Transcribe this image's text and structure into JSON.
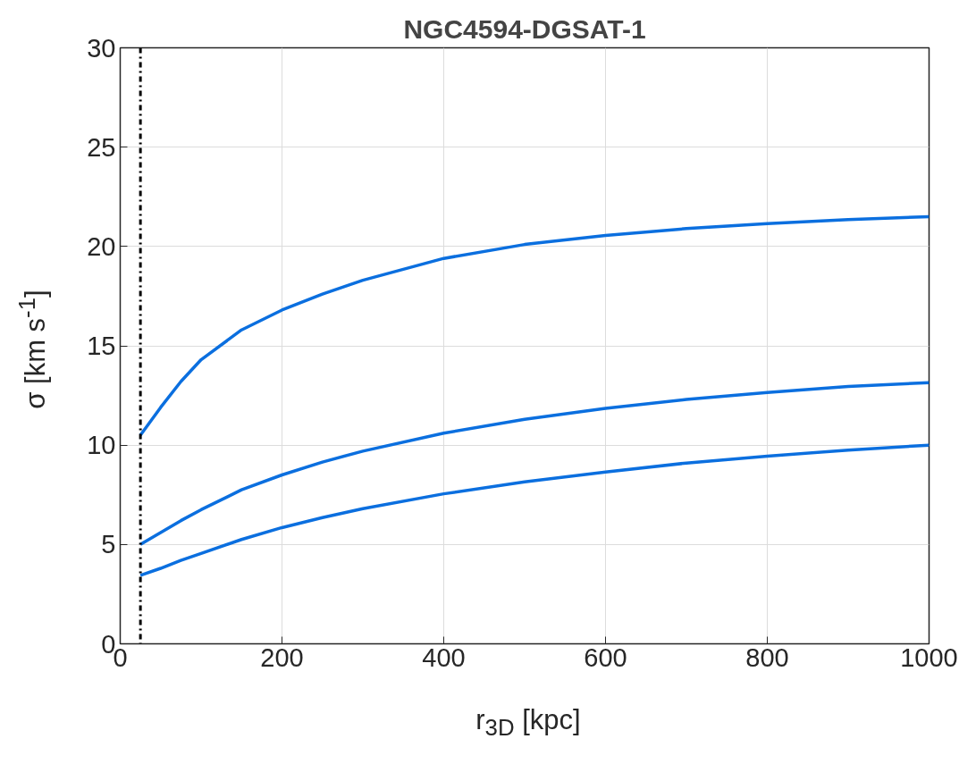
{
  "chart_data": {
    "type": "line",
    "title": "NGC4594-DGSAT-1",
    "xlabel": "r$_{3D}$ [kpc]",
    "ylabel": "σ [km s$^{-1}$]",
    "x": [
      25,
      50,
      75,
      100,
      150,
      200,
      250,
      300,
      400,
      500,
      600,
      700,
      800,
      900,
      1000
    ],
    "series": [
      {
        "color": "#0b6fdf",
        "values": [
          10.5,
          11.9,
          13.2,
          14.3,
          15.8,
          16.8,
          17.6,
          18.3,
          19.4,
          20.1,
          20.55,
          20.9,
          21.15,
          21.35,
          21.5
        ]
      },
      {
        "color": "#0b6fdf",
        "values": [
          5.0,
          5.6,
          6.2,
          6.75,
          7.75,
          8.5,
          9.15,
          9.7,
          10.6,
          11.3,
          11.85,
          12.3,
          12.65,
          12.95,
          13.15
        ]
      },
      {
        "color": "#0b6fdf",
        "values": [
          3.45,
          3.8,
          4.2,
          4.55,
          5.25,
          5.85,
          6.35,
          6.8,
          7.55,
          8.15,
          8.65,
          9.1,
          9.45,
          9.75,
          10.0
        ]
      }
    ],
    "xlim": [
      0,
      1000
    ],
    "ylim": [
      0,
      30
    ],
    "xticks": [
      0,
      200,
      400,
      600,
      800,
      1000
    ],
    "yticks": [
      0,
      5,
      10,
      15,
      20,
      25,
      30
    ],
    "ref_lines": [
      {
        "axis": "x",
        "value": 25,
        "color": "#000000",
        "line_style": "dashdot"
      }
    ],
    "grid": true,
    "marker": "none",
    "line_style": "solid"
  }
}
